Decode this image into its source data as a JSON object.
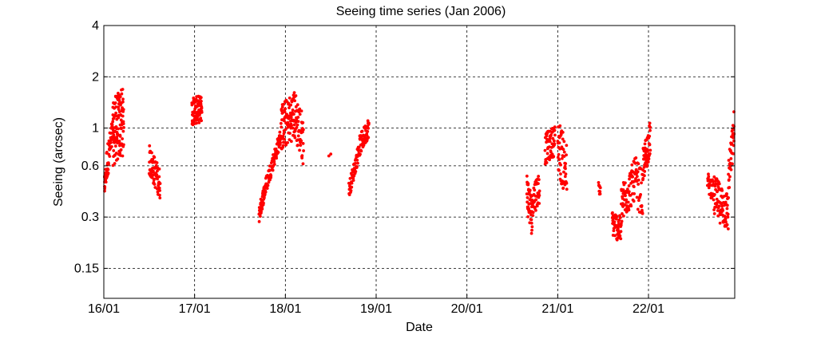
{
  "chart_data": {
    "type": "scatter",
    "title": "Seeing time series (Jan 2006)",
    "xlabel": "Date",
    "ylabel": "Seeing (arcsec)",
    "x_ticks": [
      "16/01",
      "17/01",
      "18/01",
      "19/01",
      "20/01",
      "21/01",
      "22/01"
    ],
    "x_tick_days": [
      16,
      17,
      18,
      19,
      20,
      21,
      22
    ],
    "xlim_days": [
      16,
      22.95
    ],
    "y_scale": "log",
    "y_ticks": [
      "0.15",
      "0.3",
      "0.6",
      "1",
      "2",
      "4"
    ],
    "y_tick_values": [
      0.15,
      0.3,
      0.6,
      1,
      2,
      4
    ],
    "ylim": [
      0.1,
      4
    ],
    "grid": "dashed",
    "marker_color": "#ff0000",
    "segments": [
      {
        "day_start": 16.0,
        "day_end": 16.03,
        "seeing_start": 0.45,
        "seeing_end": 0.55,
        "spread": 0.06,
        "count": 20
      },
      {
        "day_start": 16.03,
        "day_end": 16.1,
        "seeing_start": 0.6,
        "seeing_end": 0.95,
        "spread": 0.1,
        "count": 40
      },
      {
        "day_start": 16.1,
        "day_end": 16.22,
        "seeing_start": 0.95,
        "seeing_end": 1.1,
        "spread": 0.2,
        "count": 110
      },
      {
        "day_start": 16.5,
        "day_end": 16.62,
        "seeing_start": 0.65,
        "seeing_end": 0.47,
        "spread": 0.09,
        "count": 70
      },
      {
        "day_start": 16.97,
        "day_end": 17.08,
        "seeing_start": 1.25,
        "seeing_end": 1.3,
        "spread": 0.08,
        "count": 80
      },
      {
        "day_start": 17.71,
        "day_end": 17.78,
        "seeing_start": 0.31,
        "seeing_end": 0.45,
        "spread": 0.05,
        "count": 45
      },
      {
        "day_start": 17.78,
        "day_end": 17.95,
        "seeing_start": 0.45,
        "seeing_end": 0.9,
        "spread": 0.05,
        "count": 75
      },
      {
        "day_start": 17.95,
        "day_end": 18.1,
        "seeing_start": 1.0,
        "seeing_end": 1.2,
        "spread": 0.14,
        "count": 90
      },
      {
        "day_start": 18.1,
        "day_end": 18.2,
        "seeing_start": 1.2,
        "seeing_end": 0.85,
        "spread": 0.15,
        "count": 55
      },
      {
        "day_start": 18.48,
        "day_end": 18.5,
        "seeing_start": 0.7,
        "seeing_end": 0.7,
        "spread": 0.01,
        "count": 2
      },
      {
        "day_start": 18.7,
        "day_end": 18.8,
        "seeing_start": 0.43,
        "seeing_end": 0.7,
        "spread": 0.05,
        "count": 45
      },
      {
        "day_start": 18.8,
        "day_end": 18.92,
        "seeing_start": 0.75,
        "seeing_end": 1.02,
        "spread": 0.06,
        "count": 65
      },
      {
        "day_start": 20.66,
        "day_end": 20.72,
        "seeing_start": 0.42,
        "seeing_end": 0.3,
        "spread": 0.12,
        "count": 45
      },
      {
        "day_start": 20.72,
        "day_end": 20.8,
        "seeing_start": 0.38,
        "seeing_end": 0.45,
        "spread": 0.1,
        "count": 40
      },
      {
        "day_start": 20.86,
        "day_end": 20.97,
        "seeing_start": 0.75,
        "seeing_end": 0.85,
        "spread": 0.09,
        "count": 60
      },
      {
        "day_start": 21.0,
        "day_end": 21.1,
        "seeing_start": 0.8,
        "seeing_end": 0.55,
        "spread": 0.17,
        "count": 55
      },
      {
        "day_start": 21.45,
        "day_end": 21.47,
        "seeing_start": 0.45,
        "seeing_end": 0.42,
        "spread": 0.03,
        "count": 10
      },
      {
        "day_start": 21.6,
        "day_end": 21.7,
        "seeing_start": 0.28,
        "seeing_end": 0.25,
        "spread": 0.08,
        "count": 60
      },
      {
        "day_start": 21.7,
        "day_end": 21.85,
        "seeing_start": 0.35,
        "seeing_end": 0.5,
        "spread": 0.12,
        "count": 80
      },
      {
        "day_start": 21.85,
        "day_end": 21.94,
        "seeing_start": 0.5,
        "seeing_end": 0.4,
        "spread": 0.14,
        "count": 40
      },
      {
        "day_start": 21.94,
        "day_end": 22.02,
        "seeing_start": 0.6,
        "seeing_end": 0.88,
        "spread": 0.1,
        "count": 60
      },
      {
        "day_start": 22.65,
        "day_end": 22.72,
        "seeing_start": 0.48,
        "seeing_end": 0.42,
        "spread": 0.06,
        "count": 30
      },
      {
        "day_start": 22.72,
        "day_end": 22.88,
        "seeing_start": 0.4,
        "seeing_end": 0.32,
        "spread": 0.12,
        "count": 90
      },
      {
        "day_start": 22.88,
        "day_end": 22.95,
        "seeing_start": 0.5,
        "seeing_end": 1.0,
        "spread": 0.12,
        "count": 40
      }
    ]
  }
}
